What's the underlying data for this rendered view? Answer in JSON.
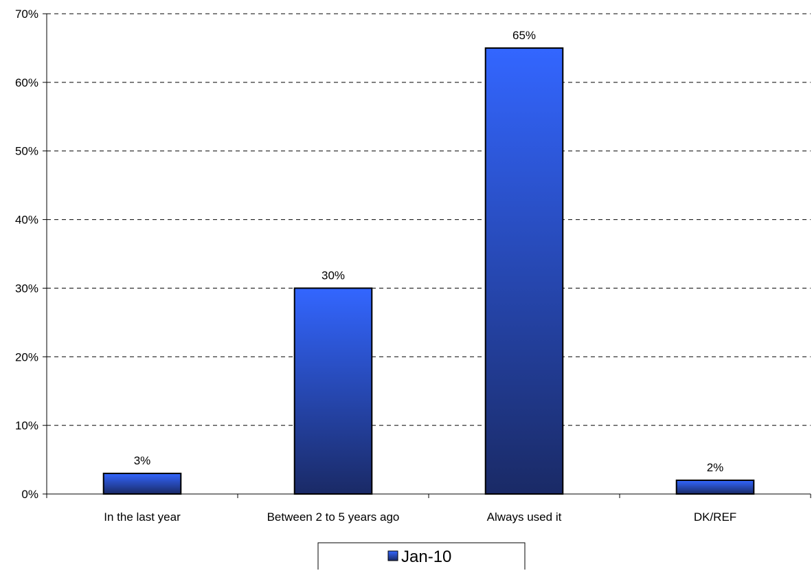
{
  "chart_data": {
    "type": "bar",
    "categories": [
      "In the last year",
      "Between 2 to 5 years ago",
      "Always used it",
      "DK/REF"
    ],
    "series": [
      {
        "name": "Jan-10",
        "values": [
          3,
          30,
          65,
          2
        ],
        "labels": [
          "3%",
          "30%",
          "65%",
          "2%"
        ]
      }
    ],
    "ylim": [
      0,
      70
    ],
    "yticks": [
      0,
      10,
      20,
      30,
      40,
      50,
      60,
      70
    ],
    "ytick_labels": [
      "0%",
      "10%",
      "20%",
      "30%",
      "40%",
      "50%",
      "60%",
      "70%"
    ],
    "grid": true,
    "legend_position": "bottom",
    "colors": {
      "bar_top": "#3366ff",
      "bar_bottom": "#1a2a66",
      "bar_border": "#000000",
      "grid": "#000000"
    }
  }
}
